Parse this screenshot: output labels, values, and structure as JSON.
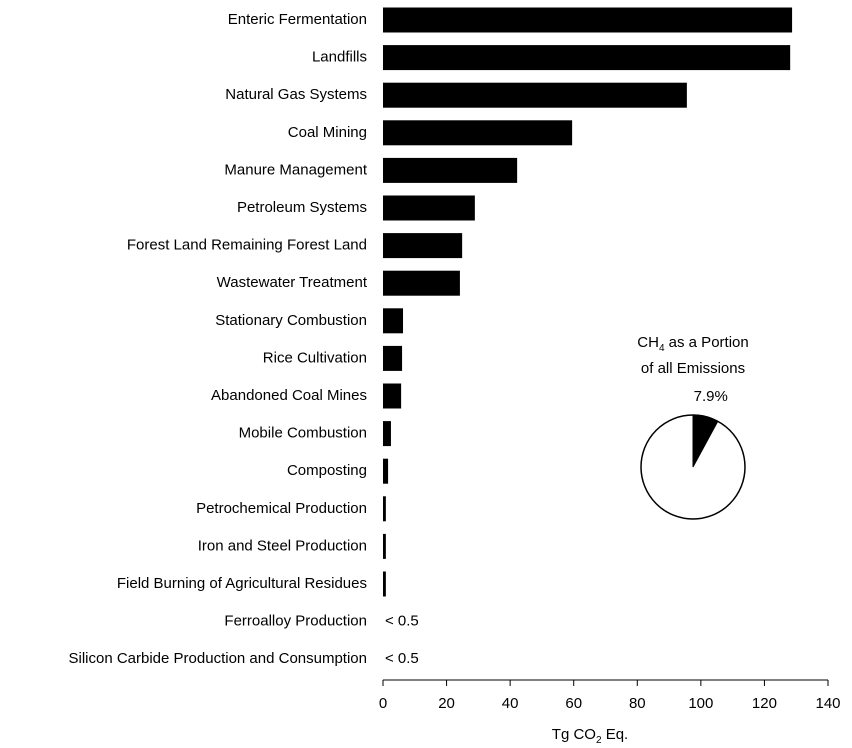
{
  "chart_data": [
    {
      "type": "barh",
      "categories": [
        "Enteric Fermentation",
        "Landfills",
        "Natural Gas Systems",
        "Coal Mining",
        "Manure Management",
        "Petroleum Systems",
        "Forest Land Remaining Forest Land",
        "Wastewater Treatment",
        "Stationary Combustion",
        "Rice Cultivation",
        "Abandoned Coal Mines",
        "Mobile Combustion",
        "Composting",
        "Petrochemical Production",
        "Iron and Steel Production",
        "Field Burning of Agricultural Residues",
        "Ferroalloy Production",
        "Silicon Carbide Production and Consumption"
      ],
      "values": [
        128.7,
        128.1,
        95.6,
        59.5,
        42.2,
        28.9,
        24.9,
        24.2,
        6.3,
        6.0,
        5.7,
        2.5,
        1.6,
        0.9,
        0.9,
        0.9,
        null,
        null
      ],
      "value_labels": [
        null,
        null,
        null,
        null,
        null,
        null,
        null,
        null,
        null,
        null,
        null,
        null,
        null,
        null,
        null,
        null,
        "< 0.5",
        "< 0.5"
      ],
      "color": "#000000",
      "xlim": [
        0,
        140
      ],
      "xticks": [
        0,
        20,
        40,
        60,
        80,
        100,
        120,
        140
      ],
      "x_label_parts": [
        "Tg CO",
        "2",
        " Eq."
      ]
    },
    {
      "type": "pie",
      "title_parts": [
        "CH",
        "4",
        " as a Portion"
      ],
      "title_line2": "of all Emissions",
      "values": [
        7.9
      ],
      "value_labels": [
        "7.9%"
      ],
      "color": "#000000"
    }
  ]
}
